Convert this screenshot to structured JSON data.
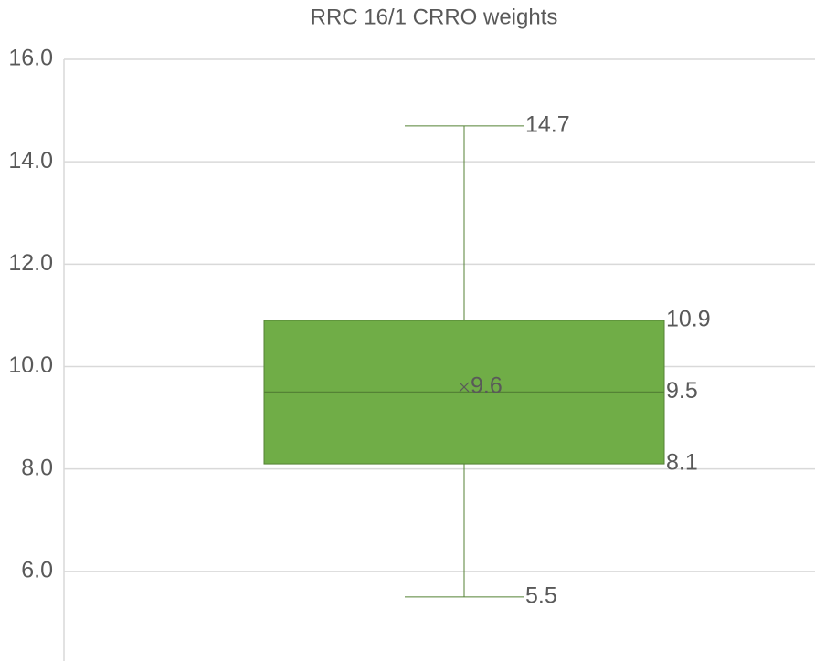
{
  "chart_data": {
    "type": "box",
    "title": "RRC 16/1 CRRO weights",
    "ylim": [
      4.25,
      16
    ],
    "yticks": [
      {
        "value": 6,
        "label": "6.0"
      },
      {
        "value": 8,
        "label": "8.0"
      },
      {
        "value": 10,
        "label": "10.0"
      },
      {
        "value": 12,
        "label": "12.0"
      },
      {
        "value": 14,
        "label": "14.0"
      },
      {
        "value": 16,
        "label": "16.0"
      }
    ],
    "grid": true,
    "color": "#70ad47",
    "boxes": [
      {
        "min": 5.5,
        "q1": 8.1,
        "median": 9.5,
        "q3": 10.9,
        "max": 14.7,
        "mean": 9.6
      }
    ]
  }
}
